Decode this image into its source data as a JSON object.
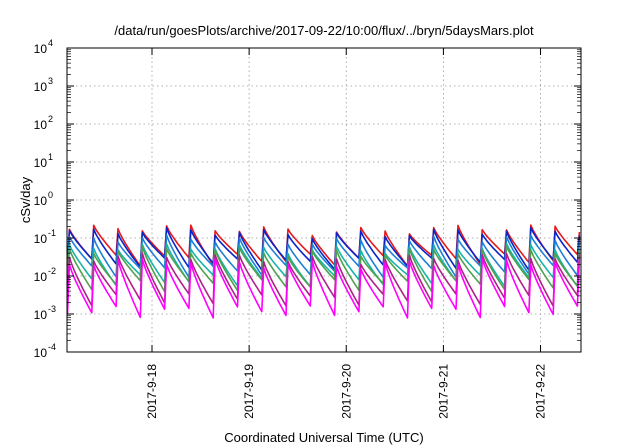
{
  "chart_data": {
    "type": "line",
    "title": "/data/run/goesPlots/archive/2017-09-22/10:00/flux/../bryn/5daysMars.plot",
    "xlabel": "Coordinated Universal Time (UTC)",
    "ylabel": "cSv/day",
    "yscale": "log",
    "ylim": [
      "1e-4",
      "1e4"
    ],
    "xlim": [
      "2017-09-17T03:00",
      "2017-09-22T10:00"
    ],
    "y_ticks": [
      {
        "base": "10",
        "exp": "-4"
      },
      {
        "base": "10",
        "exp": "-3"
      },
      {
        "base": "10",
        "exp": "-2"
      },
      {
        "base": "10",
        "exp": "-1"
      },
      {
        "base": "10",
        "exp": "0"
      },
      {
        "base": "10",
        "exp": "1"
      },
      {
        "base": "10",
        "exp": "2"
      },
      {
        "base": "10",
        "exp": "3"
      },
      {
        "base": "10",
        "exp": "4"
      }
    ],
    "x_ticks": [
      {
        "date": "2017-09-18",
        "label": "2017-9-18"
      },
      {
        "date": "2017-09-19",
        "label": "2017-9-19"
      },
      {
        "date": "2017-09-20",
        "label": "2017-9-20"
      },
      {
        "date": "2017-09-21",
        "label": "2017-9-21"
      },
      {
        "date": "2017-09-22",
        "label": "2017-9-22"
      }
    ],
    "grid": true,
    "legend": "none",
    "cycles_per_day": 4,
    "series": [
      {
        "color": "#e41a1c",
        "peak": 0.17,
        "trough": 0.028
      },
      {
        "color": "#0b24c8",
        "peak": 0.14,
        "trough": 0.022
      },
      {
        "color": "#1e7fd6",
        "peak": 0.09,
        "trough": 0.014
      },
      {
        "color": "#18b4a8",
        "peak": 0.055,
        "trough": 0.008
      },
      {
        "color": "#4fa14f",
        "peak": 0.045,
        "trough": 0.006
      },
      {
        "color": "#b0208a",
        "peak": 0.03,
        "trough": 0.0025
      },
      {
        "color": "#ff00ff",
        "peak": 0.022,
        "trough": 0.0012
      }
    ]
  }
}
